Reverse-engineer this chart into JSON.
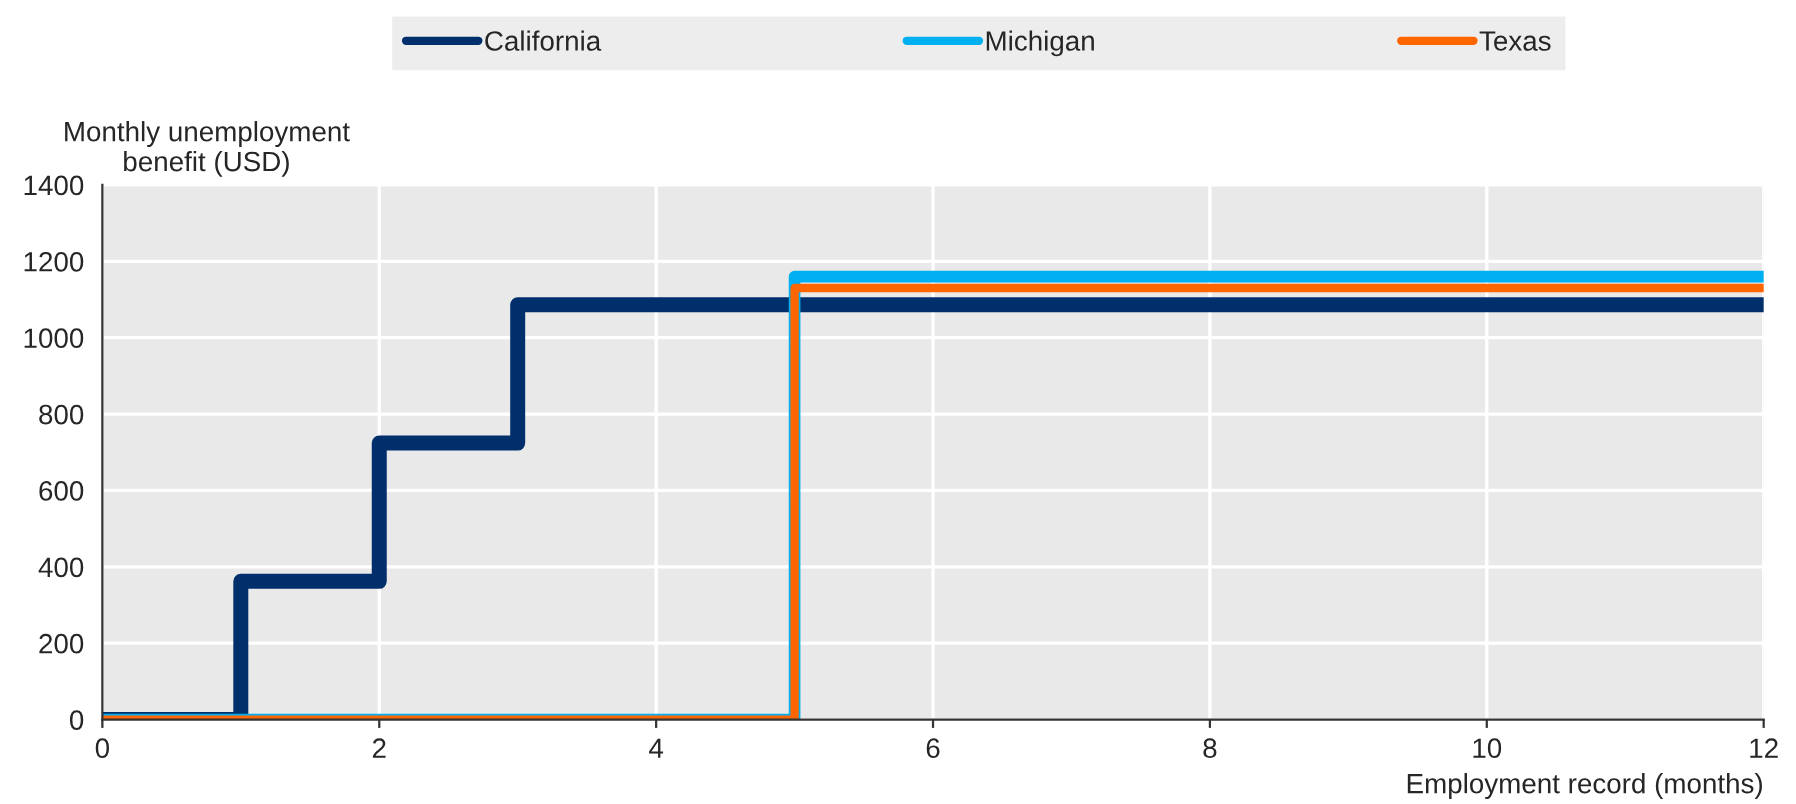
{
  "chart_data": {
    "type": "step",
    "xlabel": "Employment record (months)",
    "ylabel": "Monthly unemployment\nbenefit (USD)",
    "series": [
      {
        "name": "California",
        "color": "#002f6c",
        "x": [
          0,
          1,
          2,
          3,
          12
        ],
        "values": [
          0,
          362,
          724,
          1086,
          1086
        ]
      },
      {
        "name": "Michigan",
        "color": "#00b0f0",
        "x": [
          0,
          5,
          12
        ],
        "values": [
          0,
          1160,
          1160
        ]
      },
      {
        "name": "Texas",
        "color": "#ff6600",
        "x": [
          0,
          5,
          12
        ],
        "values": [
          0,
          1130,
          1130
        ]
      }
    ],
    "xlim": [
      0,
      12
    ],
    "xticks": [
      0,
      2,
      4,
      6,
      8,
      10,
      12
    ],
    "ylim": [
      0,
      1400
    ],
    "yticks": [
      0,
      200,
      400,
      600,
      800,
      1000,
      1200,
      1400
    ],
    "grid": true,
    "legend": "top",
    "line_style": "solid",
    "marker": "none"
  }
}
